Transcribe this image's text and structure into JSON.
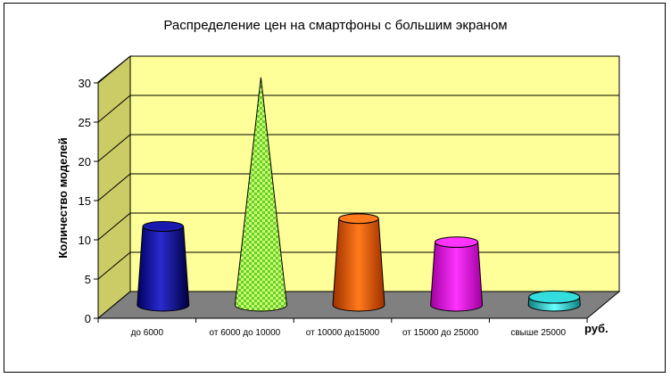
{
  "chart_data": {
    "type": "bar",
    "shapes": [
      "cylinder-cone",
      "cone",
      "cylinder-cone",
      "cylinder-cone",
      "cylinder-cone"
    ],
    "title": "Распределение цен на смартфоны с большим экраном",
    "xlabel": "",
    "x_unit": "руб.",
    "ylabel": "Количество моделей",
    "ylim": [
      0,
      30
    ],
    "yticks": [
      "0",
      "5",
      "10",
      "15",
      "20",
      "25",
      "30"
    ],
    "categories": [
      "до 6000",
      "от 6000 до 10000",
      "от 10000 до15000",
      "от 15000 до 25000",
      "свыше 25000"
    ],
    "values": [
      10,
      29,
      11,
      8,
      1
    ],
    "colors": [
      "#1a1aa8",
      "#66cc33",
      "#ff6600",
      "#ff00ff",
      "#33cccc"
    ],
    "wall_color": "#ffff99",
    "floor_color": "#808080",
    "grid": true,
    "legend": "none"
  }
}
